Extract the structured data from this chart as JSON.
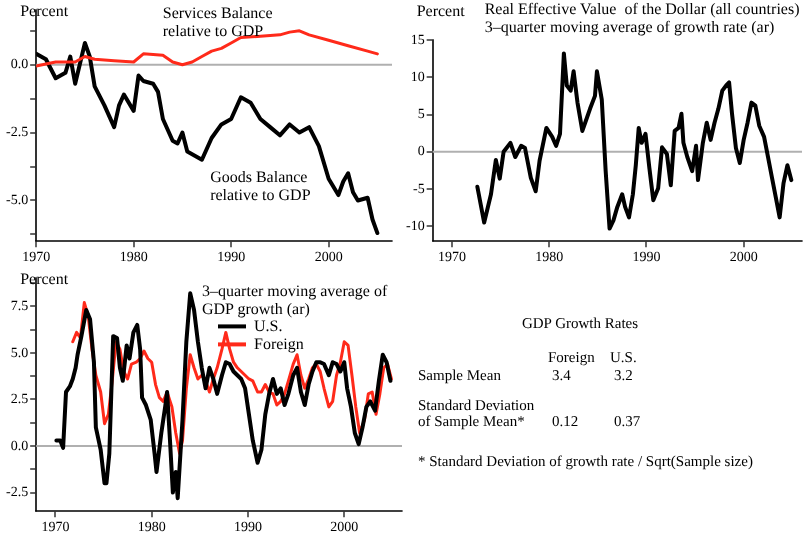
{
  "chart_data": [
    {
      "type": "line",
      "ylabel": "Percent",
      "xlim": [
        1970,
        2006.5
      ],
      "ylim": [
        -6.5,
        2
      ],
      "xticks": [
        1970,
        1980,
        1990,
        2000
      ],
      "yticks": [
        {
          "value": 1.25,
          "label": null
        },
        {
          "value": 0,
          "label": "0.0"
        },
        {
          "value": -1.25,
          "label": null
        },
        {
          "value": -2.5,
          "label": "-2.5"
        },
        {
          "value": -3.75,
          "label": null
        },
        {
          "value": -5,
          "label": "-5.0"
        },
        {
          "value": -6.25,
          "label": null
        }
      ],
      "grid": false,
      "legend": false,
      "marker": "none",
      "line_style": "solid",
      "ref_lines": [
        {
          "axis": "y",
          "value": 0,
          "color": "#b0b0b0"
        }
      ],
      "series": [
        {
          "name": "Services Balance relative to GDP",
          "color": "#ff2a1a",
          "x": [
            1970,
            1972,
            1974,
            1975,
            1976,
            1978,
            1980,
            1981,
            1983,
            1984,
            1985,
            1986,
            1987,
            1988,
            1989,
            1990,
            1991,
            1993,
            1995,
            1996,
            1997,
            1998,
            2000,
            2002,
            2004,
            2005
          ],
          "values": [
            -0.05,
            0.1,
            0.1,
            0.3,
            0.2,
            0.15,
            0.1,
            0.4,
            0.35,
            0.1,
            0,
            0.1,
            0.3,
            0.5,
            0.6,
            0.8,
            1,
            1.05,
            1.1,
            1.2,
            1.25,
            1.1,
            0.9,
            0.7,
            0.5,
            0.4
          ]
        },
        {
          "name": "Goods Balance relative to GDP",
          "color": "#000000",
          "x": [
            1970,
            1971,
            1972,
            1973,
            1973.5,
            1974,
            1975,
            1975.5,
            1976,
            1977,
            1978,
            1978.5,
            1979,
            1980,
            1980.5,
            1981,
            1982,
            1982.5,
            1983,
            1984,
            1984.5,
            1985,
            1985.5,
            1986,
            1987,
            1988,
            1989,
            1990,
            1991,
            1992,
            1993,
            1994,
            1995,
            1996,
            1997,
            1998,
            1999,
            2000,
            2001,
            2001.5,
            2002,
            2002.5,
            2003,
            2004,
            2004.5,
            2005
          ],
          "values": [
            0.4,
            0.2,
            -0.5,
            -0.3,
            0.3,
            -0.7,
            0.8,
            0.3,
            -0.8,
            -1.5,
            -2.3,
            -1.5,
            -1.1,
            -1.7,
            -0.4,
            -0.6,
            -0.7,
            -1,
            -2,
            -2.8,
            -2.9,
            -2.5,
            -3.2,
            -3.3,
            -3.5,
            -2.7,
            -2.2,
            -2,
            -1.2,
            -1.4,
            -2,
            -2.3,
            -2.6,
            -2.2,
            -2.5,
            -2.3,
            -3,
            -4.2,
            -4.8,
            -4.3,
            -4,
            -4.7,
            -5,
            -4.9,
            -5.7,
            -6.2
          ]
        }
      ]
    },
    {
      "type": "line",
      "title": "Real Effective Value  of the Dollar (all countries)",
      "subtitle": "3–quarter moving average of growth rate (ar)",
      "ylabel": "Percent",
      "xlim": [
        1968,
        2006
      ],
      "ylim": [
        -12,
        15
      ],
      "xticks": [
        1970,
        1980,
        1990,
        2000
      ],
      "yticks": [
        -10,
        -5,
        0,
        5,
        10,
        15
      ],
      "grid": false,
      "legend": false,
      "marker": "none",
      "line_style": "solid",
      "ref_lines": [
        {
          "axis": "y",
          "value": 0,
          "color": "#b0b0b0"
        }
      ],
      "series": [
        {
          "color": "#000000",
          "x": [
            1972.6,
            1973.3,
            1974,
            1974.5,
            1974.9,
            1975.3,
            1976,
            1976.5,
            1977.1,
            1977.5,
            1978.1,
            1978.6,
            1979,
            1979.7,
            1980.3,
            1980.7,
            1981.1,
            1981.5,
            1981.8,
            1982.2,
            1982.5,
            1982.9,
            1983.4,
            1983.8,
            1984.2,
            1984.7,
            1984.9,
            1985.4,
            1985.8,
            1986.2,
            1986.6,
            1987,
            1987.5,
            1987.8,
            1988.2,
            1988.6,
            1988.9,
            1989.2,
            1989.5,
            1989.9,
            1990.3,
            1990.7,
            1991.2,
            1991.6,
            1992.1,
            1992.5,
            1992.9,
            1993.3,
            1993.6,
            1993.8,
            1994.2,
            1994.7,
            1995.1,
            1995.3,
            1995.8,
            1996.2,
            1996.6,
            1997,
            1997.4,
            1997.8,
            1998.2,
            1998.5,
            1998.8,
            1999.2,
            1999.6,
            2000,
            2000.4,
            2000.8,
            2001.2,
            2001.6,
            2002.1,
            2002.5,
            2002.9,
            2003.3,
            2003.7,
            2004.1,
            2004.5,
            2004.9
          ],
          "values": [
            -4.7,
            -9.5,
            -5.7,
            -1.1,
            -3.6,
            0,
            1.2,
            -0.7,
            0.8,
            0.5,
            -3.5,
            -5.3,
            -1.2,
            3.2,
            2,
            0.8,
            2.4,
            13.2,
            8.9,
            8.2,
            10.8,
            6.6,
            2.8,
            4.3,
            5.8,
            7.5,
            10.8,
            7,
            -2.6,
            -10.3,
            -9.2,
            -7.4,
            -5.7,
            -7.4,
            -8.8,
            -5.7,
            -1.8,
            3.2,
            1.2,
            2.4,
            -2.2,
            -6.5,
            -4.9,
            0.6,
            -0.3,
            -4.5,
            2.8,
            3.2,
            5.1,
            1.2,
            -0.7,
            -2.6,
            0.8,
            -3.8,
            1.2,
            3.9,
            1.6,
            3.9,
            5.8,
            8.2,
            8.9,
            9.3,
            5.1,
            0.5,
            -1.5,
            1.6,
            3.9,
            6.6,
            6.2,
            3.5,
            2,
            -0.7,
            -3.4,
            -6.1,
            -8.8,
            -4.2,
            -1.8,
            -3.8
          ]
        }
      ]
    },
    {
      "type": "line",
      "title": "3–quarter moving average of GDP growth (ar)",
      "ylabel": "Percent",
      "xlim": [
        1968,
        2006
      ],
      "ylim": [
        -3.5,
        9
      ],
      "xticks": [
        1970,
        1980,
        1990,
        2000
      ],
      "yticks": [
        {
          "value": -2.5,
          "label": "-2.5"
        },
        {
          "value": -1.25,
          "label": null
        },
        {
          "value": 0,
          "label": "0.0"
        },
        {
          "value": 1.25,
          "label": null
        },
        {
          "value": 2.5,
          "label": "2.5"
        },
        {
          "value": 3.75,
          "label": null
        },
        {
          "value": 5,
          "label": "5.0"
        },
        {
          "value": 6.25,
          "label": null
        },
        {
          "value": 7.5,
          "label": "7.5"
        },
        {
          "value": 8.75,
          "label": null
        }
      ],
      "grid": false,
      "legend": "top right",
      "marker": "none",
      "line_style": "solid",
      "ref_lines": [
        {
          "axis": "y",
          "value": 0,
          "color": "#b0b0b0"
        }
      ],
      "series": [
        {
          "name": "U.S.",
          "color": "#000000",
          "x": [
            1970.1,
            1970.5,
            1970.8,
            1971.1,
            1971.5,
            1971.8,
            1972.1,
            1972.3,
            1972.7,
            1973.2,
            1973.6,
            1974,
            1974.2,
            1974.7,
            1975.1,
            1975.3,
            1975.6,
            1976,
            1976.4,
            1976.7,
            1977,
            1977.4,
            1977.7,
            1978.1,
            1978.5,
            1978.8,
            1979,
            1979.4,
            1979.9,
            1980.3,
            1980.5,
            1981,
            1981.4,
            1981.6,
            1981.9,
            1982.2,
            1982.5,
            1982.7,
            1983.2,
            1983.6,
            1984,
            1984.4,
            1984.8,
            1985.2,
            1985.6,
            1986,
            1986.4,
            1986.8,
            1987.3,
            1987.7,
            1988.1,
            1988.5,
            1988.9,
            1989.3,
            1989.7,
            1990.1,
            1990.5,
            1991,
            1991.4,
            1991.8,
            1992.2,
            1992.6,
            1993,
            1993.4,
            1993.8,
            1994.2,
            1994.7,
            1995.1,
            1995.5,
            1995.9,
            1996.3,
            1996.7,
            1997.1,
            1997.5,
            1997.9,
            1998.4,
            1998.8,
            1999.2,
            1999.6,
            2000,
            2000.3,
            2000.7,
            2001.1,
            2001.5,
            2001.9,
            2002.3,
            2002.7,
            2003.2,
            2003.6,
            2004,
            2004.4,
            2004.8
          ],
          "values": [
            0.3,
            0.3,
            -0.1,
            2.9,
            3.2,
            3.6,
            4.2,
            4.9,
            5.9,
            7.3,
            6.8,
            4.5,
            1,
            -0.2,
            -2,
            -2,
            -0.4,
            5.9,
            5.8,
            4.2,
            3.5,
            5.4,
            4.7,
            6.1,
            6.5,
            5.2,
            2.6,
            2.2,
            1.4,
            -0.4,
            -1.4,
            0.7,
            2.1,
            2.9,
            0.3,
            -2.5,
            -1.4,
            -2.8,
            1.4,
            5.6,
            8.2,
            7.3,
            5.6,
            4.2,
            3.1,
            4.2,
            3.6,
            2.8,
            3.8,
            4.5,
            4.4,
            4,
            3.8,
            3.6,
            3.1,
            1.7,
            0.3,
            -0.9,
            -0.2,
            1.7,
            2.8,
            3.6,
            2.8,
            3.1,
            2.2,
            2.8,
            3.8,
            4.2,
            2.9,
            2.2,
            3.3,
            4,
            4.5,
            4.5,
            4.4,
            3.8,
            4.5,
            4.4,
            4,
            4.5,
            3.1,
            2.1,
            0.7,
            0.1,
            1,
            2.1,
            2.4,
            1.9,
            3.5,
            4.9,
            4.5,
            3.5
          ]
        },
        {
          "name": "Foreign",
          "color": "#ff2a1a",
          "x": [
            1971.8,
            1972.2,
            1972.6,
            1973,
            1973.4,
            1973.8,
            1974.2,
            1974.7,
            1975.1,
            1975.5,
            1975.9,
            1976.3,
            1976.7,
            1977.1,
            1977.5,
            1977.9,
            1978.4,
            1978.8,
            1979.2,
            1979.6,
            1980,
            1980.4,
            1980.8,
            1981.2,
            1981.6,
            1982.1,
            1982.5,
            1982.9,
            1983.2,
            1983.6,
            1984,
            1984.4,
            1984.8,
            1985.2,
            1985.6,
            1986,
            1986.4,
            1986.8,
            1987.3,
            1987.7,
            1988.1,
            1988.5,
            1988.9,
            1989.3,
            1989.7,
            1990.1,
            1990.5,
            1991,
            1991.4,
            1991.8,
            1992.2,
            1992.6,
            1993,
            1993.4,
            1993.8,
            1994.2,
            1994.7,
            1995.1,
            1995.5,
            1995.9,
            1996.3,
            1996.7,
            1997.1,
            1997.5,
            1997.9,
            1998.4,
            1998.8,
            1999.2,
            1999.6,
            2000,
            2000.4,
            2000.8,
            2001.2,
            2001.6,
            2002.1,
            2002.5,
            2002.9,
            2003.3,
            2003.7,
            2004.1,
            2004.5,
            2004.9
          ],
          "values": [
            5.6,
            6.1,
            5.8,
            7.7,
            7,
            5.2,
            3.8,
            2.9,
            1.2,
            1.7,
            3.5,
            5.6,
            5.2,
            4,
            3.6,
            4.4,
            4.5,
            4.7,
            5.1,
            4.7,
            4.5,
            3.3,
            2.6,
            2.4,
            2.9,
            2.1,
            0.7,
            -0.4,
            0.3,
            3.1,
            4.9,
            4.2,
            3.6,
            3.8,
            3.5,
            2.9,
            3.6,
            4.2,
            5.2,
            6.1,
            5.2,
            4.5,
            4.2,
            4,
            3.8,
            3.6,
            3.5,
            2.9,
            2.9,
            3.3,
            2.9,
            2.8,
            2.2,
            2.4,
            2.8,
            3.5,
            4.4,
            4.9,
            3.8,
            3.1,
            3.6,
            4.2,
            4.4,
            4,
            3.1,
            2.1,
            2.4,
            3.8,
            4.5,
            5.6,
            5.4,
            3.8,
            2.1,
            0.7,
            1.4,
            2.8,
            2.9,
            1.7,
            2.8,
            4.2,
            4.4,
            3.6
          ]
        }
      ]
    },
    {
      "type": "other",
      "title": "GDP Growth Rates",
      "categories": [
        "Sample Mean",
        "Standard Deviation of Sample Mean*"
      ],
      "data_labels": true,
      "series": [
        {
          "name": "Foreign",
          "values": [
            3.4,
            0.12
          ]
        },
        {
          "name": "U.S.",
          "values": [
            3.2,
            0.37
          ]
        }
      ],
      "annotations": [
        "* Standard Deviation of growth rate / Sqrt(Sample size)"
      ]
    }
  ]
}
